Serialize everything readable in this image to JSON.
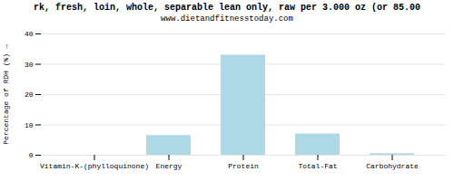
{
  "chart_data": {
    "type": "bar",
    "title": "rk, fresh, loin, whole, separable lean only, raw per 3.000 oz (or 85.00",
    "subtitle": "www.dietandfitnesstoday.com",
    "categories": [
      "Vitamin-K-(phylloquinone)",
      "Energy",
      "Protein",
      "Total-Fat",
      "Carbohydrate"
    ],
    "values": [
      0,
      6.5,
      33,
      7,
      0.5
    ],
    "color": "#add8e6",
    "ylabel": "Percentage of RDH (%)",
    "ylim": [
      0,
      40
    ],
    "yticks": [
      0,
      10,
      20,
      30,
      40
    ],
    "grid": true
  }
}
